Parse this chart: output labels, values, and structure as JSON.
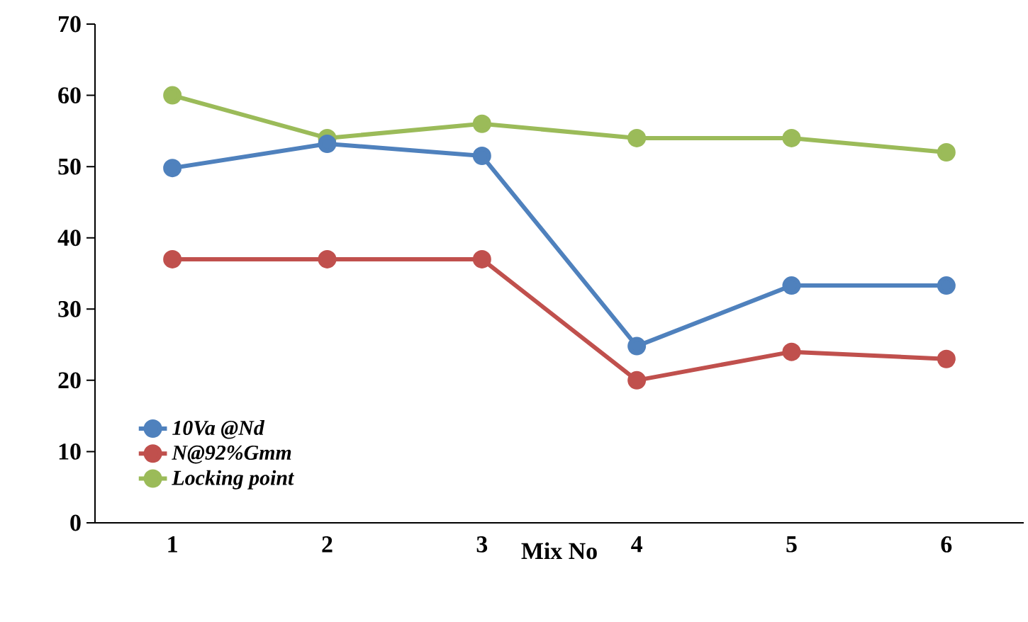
{
  "chart_data": {
    "type": "line",
    "xlabel": "Mix No",
    "categories": [
      "1",
      "2",
      "3",
      "4",
      "5",
      "6"
    ],
    "series": [
      {
        "name": "10Va @Nd",
        "color": "#4f81bd",
        "values": [
          49.8,
          53.2,
          51.5,
          24.8,
          33.3,
          33.3
        ]
      },
      {
        "name": "N@92%Gmm",
        "color": "#c0504d",
        "values": [
          37,
          37,
          37,
          20,
          24,
          23
        ]
      },
      {
        "name": "Locking point",
        "color": "#9bbb59",
        "values": [
          60,
          54,
          56,
          54,
          54,
          52
        ]
      }
    ],
    "ylim": [
      0,
      70
    ],
    "yticks": [
      0,
      10,
      20,
      30,
      40,
      50,
      60,
      70
    ],
    "grid": false,
    "legend": "bottom left",
    "marker": "circle",
    "line_style": "solid"
  }
}
